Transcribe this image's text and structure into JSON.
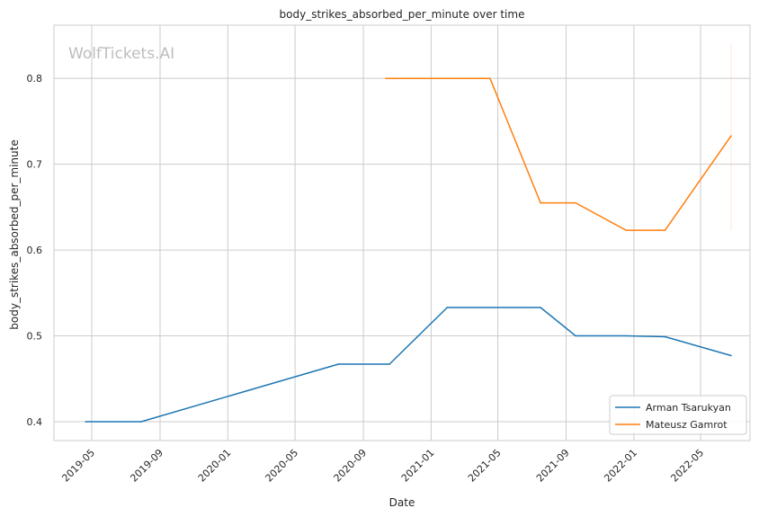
{
  "chart_data": {
    "type": "line",
    "title": "body_strikes_absorbed_per_minute over time",
    "xlabel": "Date",
    "ylabel": "body_strikes_absorbed_per_minute",
    "watermark": "WolfTickets.AI",
    "x_tick_labels": [
      "2019-05",
      "2019-09",
      "2020-01",
      "2020-05",
      "2020-09",
      "2021-01",
      "2021-05",
      "2021-09",
      "2022-01",
      "2022-05"
    ],
    "x_ticks": [
      "2019-05-01",
      "2019-09-01",
      "2020-01-01",
      "2020-05-01",
      "2020-09-01",
      "2021-01-01",
      "2021-05-01",
      "2021-09-01",
      "2022-01-01",
      "2022-05-01"
    ],
    "xlim": [
      "2019-02-22",
      "2022-07-29"
    ],
    "y_ticks": [
      0.4,
      0.5,
      0.6,
      0.7,
      0.8
    ],
    "y_tick_labels": [
      "0.4",
      "0.5",
      "0.6",
      "0.7",
      "0.8"
    ],
    "ylim": [
      0.378,
      0.862
    ],
    "grid": true,
    "legend_position": "bottom-right",
    "series": [
      {
        "name": "Arman Tsarukyan",
        "color": "#1f77b4",
        "points": [
          {
            "x": "2019-04-20",
            "y": 0.4
          },
          {
            "x": "2019-07-29",
            "y": 0.4
          },
          {
            "x": "2020-07-18",
            "y": 0.467
          },
          {
            "x": "2020-10-18",
            "y": 0.467
          },
          {
            "x": "2021-01-30",
            "y": 0.533
          },
          {
            "x": "2021-07-17",
            "y": 0.533
          },
          {
            "x": "2021-09-18",
            "y": 0.5
          },
          {
            "x": "2021-12-18",
            "y": 0.5
          },
          {
            "x": "2022-02-26",
            "y": 0.499
          },
          {
            "x": "2022-06-25",
            "y": 0.477
          }
        ]
      },
      {
        "name": "Mateusz Gamrot",
        "color": "#ff7f0e",
        "points": [
          {
            "x": "2020-10-11",
            "y": 0.8
          },
          {
            "x": "2021-04-17",
            "y": 0.8
          },
          {
            "x": "2021-07-17",
            "y": 0.655
          },
          {
            "x": "2021-09-18",
            "y": 0.655
          },
          {
            "x": "2021-12-18",
            "y": 0.623
          },
          {
            "x": "2022-02-26",
            "y": 0.623
          },
          {
            "x": "2022-06-25",
            "y": 0.733
          }
        ],
        "error_bar": {
          "x": "2022-06-25",
          "low": 0.623,
          "high": 0.842
        }
      }
    ]
  }
}
